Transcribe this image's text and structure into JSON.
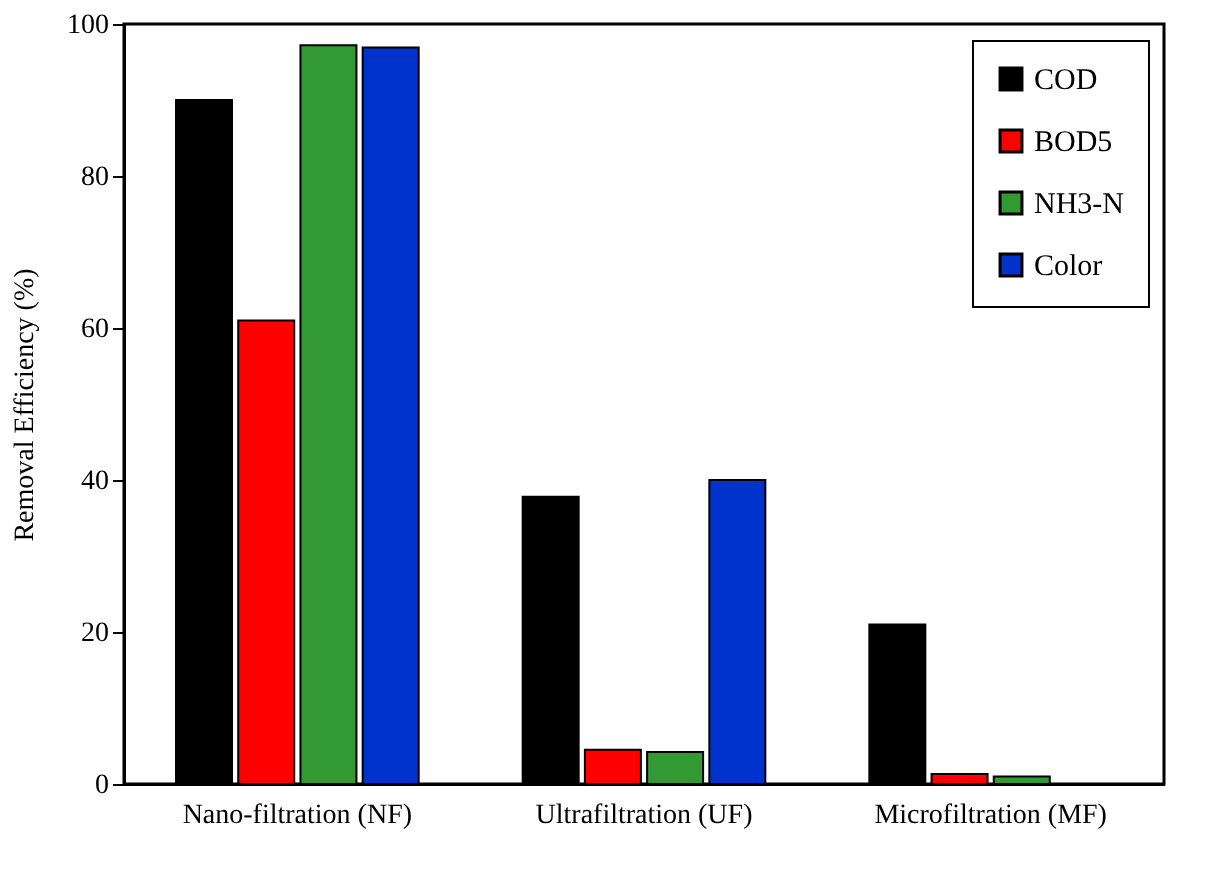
{
  "chart_data": {
    "type": "bar",
    "ylabel": "Removal Efficiency (%)",
    "categories": [
      "Nano-filtration (NF)",
      "Ultrafiltration (UF)",
      "Microfiltration (MF)"
    ],
    "series": [
      {
        "name": "COD",
        "color": "#000000",
        "values": [
          90,
          37.8,
          21
        ]
      },
      {
        "name": "BOD5",
        "color": "#ff0000",
        "values": [
          61,
          4.5,
          1.3
        ]
      },
      {
        "name": "NH3-N",
        "color": "#339933",
        "values": [
          97.2,
          4.2,
          1.0
        ]
      },
      {
        "name": "Color",
        "color": "#0033cc",
        "values": [
          96.9,
          40,
          null
        ]
      }
    ],
    "ylim": [
      0,
      100
    ],
    "yticks": [
      0,
      20,
      40,
      60,
      80,
      100
    ],
    "grid": false,
    "legend": "top right"
  }
}
